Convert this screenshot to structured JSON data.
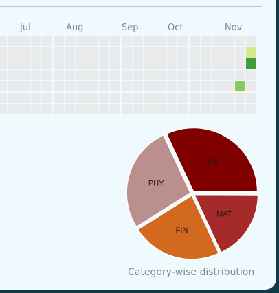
{
  "heatmap": {
    "months": [
      "Jul",
      "Aug",
      "Sep",
      "Oct",
      "Nov"
    ],
    "rows": 7,
    "cols": 23,
    "empty_color": "#e8eaeb",
    "active_cells": [
      {
        "row": 1,
        "col": 22,
        "level": 1,
        "color": "#d4e88c"
      },
      {
        "row": 2,
        "col": 22,
        "level": 4,
        "color": "#3f9a40"
      },
      {
        "row": 4,
        "col": 21,
        "level": 2,
        "color": "#8ec860"
      }
    ]
  },
  "chart_data": {
    "type": "pie",
    "title": "",
    "caption": "Category-wise distribution",
    "slices": [
      {
        "label": "CS",
        "value": 32,
        "color": "#800000"
      },
      {
        "label": "MAT",
        "value": 18,
        "color": "#a52a2a"
      },
      {
        "label": "FIN",
        "value": 23,
        "color": "#d2691e"
      },
      {
        "label": "PHY",
        "value": 27,
        "color": "#bc8f8f"
      }
    ]
  }
}
